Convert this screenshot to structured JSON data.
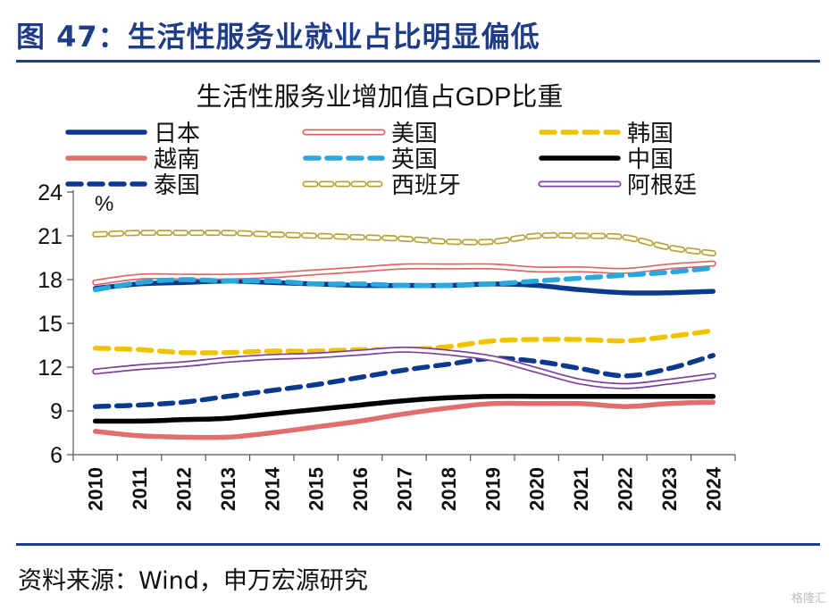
{
  "figure": {
    "title": "图 47：生活性服务业就业占比明显偏低",
    "source": "资料来源：Wind，申万宏源研究",
    "watermark": "格隆汇"
  },
  "chart_data": {
    "type": "line",
    "title": "生活性服务业增加值占GDP比重",
    "ylabel": "%",
    "xlabel": "",
    "ylim": [
      6,
      24
    ],
    "yticks": [
      6,
      9,
      12,
      15,
      18,
      21,
      24
    ],
    "categories": [
      "2010",
      "2011",
      "2012",
      "2013",
      "2014",
      "2015",
      "2016",
      "2017",
      "2018",
      "2019",
      "2020",
      "2021",
      "2022",
      "2023",
      "2024"
    ],
    "series": [
      {
        "name": "日本",
        "color": "#0b3a8c",
        "style": "solid",
        "values": [
          17.4,
          17.7,
          17.8,
          17.9,
          17.8,
          17.7,
          17.6,
          17.6,
          17.6,
          17.7,
          17.6,
          17.3,
          17.1,
          17.1,
          17.2
        ]
      },
      {
        "name": "美国",
        "color": "#e06666",
        "style": "double",
        "values": [
          17.8,
          18.2,
          18.2,
          18.2,
          18.3,
          18.5,
          18.7,
          18.9,
          18.9,
          18.9,
          18.7,
          18.7,
          18.6,
          18.9,
          19.1
        ]
      },
      {
        "name": "韩国",
        "color": "#f2c200",
        "style": "dashed",
        "values": [
          13.3,
          13.2,
          13.0,
          13.0,
          13.1,
          13.1,
          13.2,
          13.2,
          13.4,
          13.8,
          13.9,
          13.9,
          13.8,
          14.1,
          14.5
        ]
      },
      {
        "name": "越南",
        "color": "#e26d6d",
        "style": "solid",
        "values": [
          7.6,
          7.3,
          7.2,
          7.2,
          7.5,
          7.9,
          8.3,
          8.8,
          9.2,
          9.5,
          9.5,
          9.5,
          9.3,
          9.5,
          9.6
        ]
      },
      {
        "name": "英国",
        "color": "#29a8e0",
        "style": "dashed",
        "values": [
          17.3,
          17.8,
          18.0,
          17.9,
          17.9,
          17.7,
          17.7,
          17.6,
          17.6,
          17.7,
          17.9,
          18.1,
          18.3,
          18.5,
          18.8
        ]
      },
      {
        "name": "中国",
        "color": "#000000",
        "style": "solid",
        "values": [
          8.3,
          8.3,
          8.4,
          8.5,
          8.8,
          9.1,
          9.4,
          9.7,
          9.9,
          10.0,
          10.0,
          10.0,
          10.0,
          10.0,
          10.0
        ]
      },
      {
        "name": "泰国",
        "color": "#0b3a8c",
        "style": "dashed",
        "values": [
          9.3,
          9.4,
          9.6,
          10.0,
          10.4,
          10.8,
          11.3,
          11.8,
          12.2,
          12.6,
          12.4,
          11.9,
          11.4,
          11.9,
          12.8
        ]
      },
      {
        "name": "西班牙",
        "color": "#b8a23a",
        "style": "double-dashed",
        "values": [
          21.1,
          21.2,
          21.2,
          21.2,
          21.1,
          21.0,
          20.9,
          20.8,
          20.6,
          20.6,
          21.0,
          21.0,
          20.9,
          20.2,
          19.8
        ]
      },
      {
        "name": "阿根廷",
        "color": "#7b3fa0",
        "style": "double",
        "values": [
          11.7,
          12.0,
          12.2,
          12.5,
          12.7,
          12.8,
          13.0,
          13.2,
          13.0,
          12.6,
          11.8,
          11.0,
          10.7,
          11.0,
          11.4
        ]
      }
    ]
  }
}
